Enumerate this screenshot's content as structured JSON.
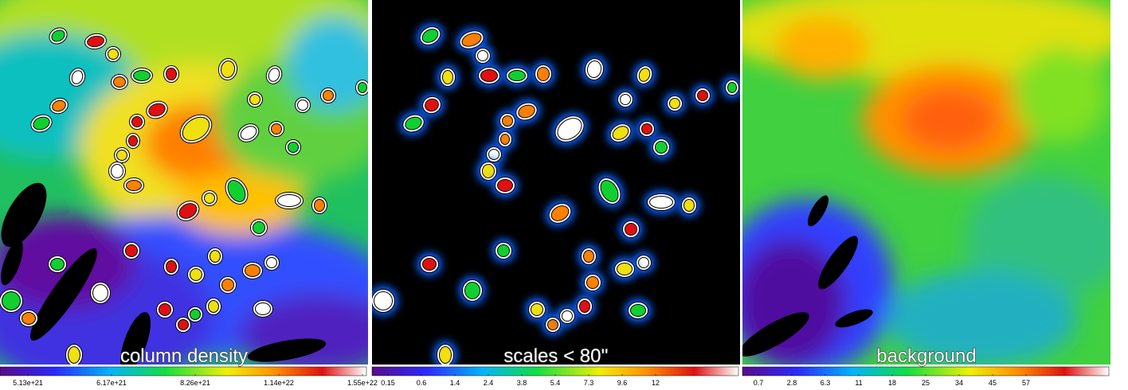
{
  "panels": [
    {
      "label": "column density",
      "colorbar_ticks": [
        "5.13e+21",
        "6.17e+21",
        "8.26e+21",
        "1.14e+22",
        "1.55e+22"
      ]
    },
    {
      "label": "scales < 80''",
      "colorbar_ticks": [
        "0.15",
        "0.6",
        "1.4",
        "2.4",
        "3.8",
        "5.4",
        "7.3",
        "9.6",
        "12"
      ]
    },
    {
      "label": "background",
      "colorbar_ticks": [
        "0.7",
        "2.8",
        "6.3",
        "11",
        "18",
        "25",
        "34",
        "45",
        "57"
      ]
    }
  ]
}
